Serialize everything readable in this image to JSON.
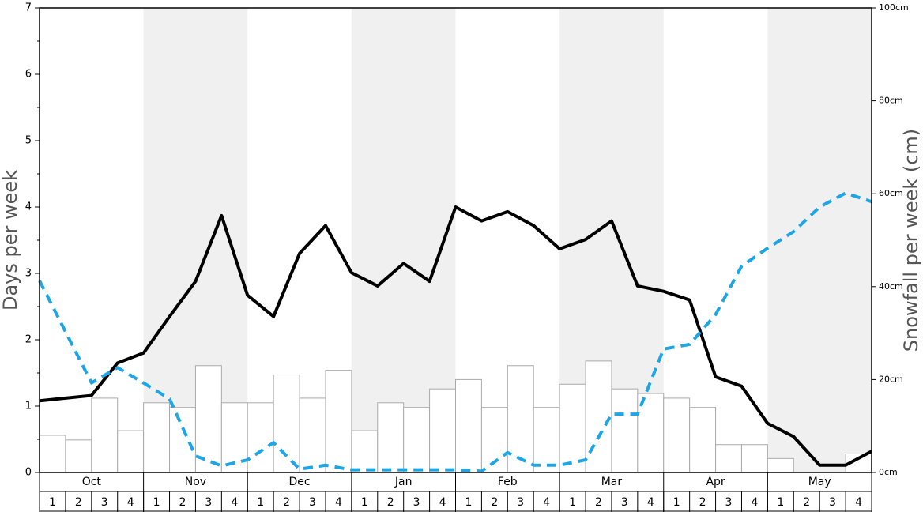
{
  "chart_data": {
    "type": "bar",
    "ylabel": "Days per week",
    "y2label": "Snowfall per week (cm)",
    "months": [
      "Oct",
      "Nov",
      "Dec",
      "Jan",
      "Feb",
      "Mar",
      "Apr",
      "May"
    ],
    "categories": [
      "1",
      "2",
      "3",
      "4",
      "1",
      "2",
      "3",
      "4",
      "1",
      "2",
      "3",
      "4",
      "1",
      "2",
      "3",
      "4",
      "1",
      "2",
      "3",
      "4",
      "1",
      "2",
      "3",
      "4",
      "1",
      "2",
      "3",
      "4",
      "1",
      "2",
      "3",
      "4"
    ],
    "ylim": [
      0,
      7
    ],
    "yticks": [
      0,
      1,
      2,
      3,
      4,
      5,
      6,
      7
    ],
    "yminorticks": [
      0.5,
      1.5,
      2.5,
      3.5,
      4.5,
      5.5,
      6.5
    ],
    "y2lim": [
      0,
      100
    ],
    "y2ticks": [
      {
        "value": 0,
        "label": "0cm"
      },
      {
        "value": 20,
        "label": "20cm"
      },
      {
        "value": 40,
        "label": "40cm"
      },
      {
        "value": 60,
        "label": "60cm"
      },
      {
        "value": 80,
        "label": "80cm"
      },
      {
        "value": 100,
        "label": "100cm"
      }
    ],
    "series": [
      {
        "type": "bar",
        "axis": "y2",
        "color": "#ffffff",
        "values": [
          8,
          7,
          16,
          9,
          15,
          14,
          23,
          15,
          15,
          21,
          16,
          22,
          9,
          15,
          14,
          18,
          20,
          14,
          23,
          14,
          19,
          24,
          18,
          17,
          16,
          14,
          6,
          6,
          3,
          0,
          0,
          4
        ]
      },
      {
        "type": "line",
        "color": "#000000",
        "dash": false,
        "x": [
          0,
          1,
          2,
          3,
          4,
          5,
          6,
          7,
          8,
          9,
          10,
          11,
          12,
          13,
          14,
          15,
          16,
          17,
          18,
          19,
          20,
          21,
          22,
          23,
          24,
          25,
          26,
          27,
          28,
          29,
          30,
          31,
          32
        ],
        "values": [
          1.08,
          1.12,
          1.16,
          1.65,
          1.8,
          2.35,
          2.88,
          3.87,
          2.67,
          2.35,
          3.3,
          3.72,
          3.01,
          2.81,
          3.15,
          2.88,
          4.0,
          3.79,
          3.93,
          3.72,
          3.37,
          3.51,
          3.79,
          2.81,
          2.73,
          2.6,
          1.44,
          1.3,
          0.74,
          0.54,
          0.11,
          0.11,
          0.32
        ]
      },
      {
        "type": "line",
        "color": "#1ea5e6",
        "dash": true,
        "x": [
          0,
          1,
          2,
          3,
          4,
          5,
          6,
          7,
          8,
          9,
          10,
          11,
          12,
          13,
          14,
          15,
          16,
          17,
          18,
          19,
          20,
          21,
          22,
          23,
          24,
          25,
          26,
          27,
          28,
          29,
          30,
          31,
          32
        ],
        "values": [
          2.89,
          2.12,
          1.35,
          1.58,
          1.35,
          1.11,
          0.25,
          0.1,
          0.19,
          0.45,
          0.05,
          0.11,
          0.04,
          0.04,
          0.04,
          0.04,
          0.04,
          0.02,
          0.3,
          0.11,
          0.11,
          0.19,
          0.88,
          0.88,
          1.86,
          1.93,
          2.38,
          3.11,
          3.38,
          3.63,
          4.0,
          4.21,
          4.08
        ]
      }
    ]
  }
}
